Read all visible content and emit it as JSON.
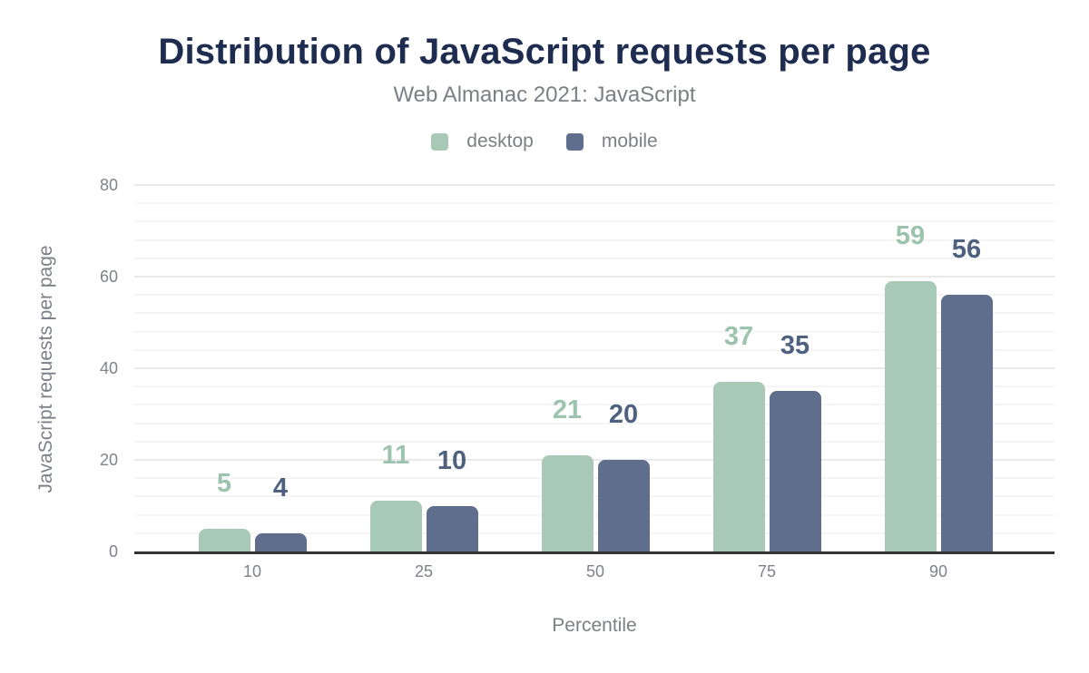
{
  "chart_data": {
    "type": "bar",
    "title": "Distribution of JavaScript requests per page",
    "subtitle": "Web Almanac 2021: JavaScript",
    "xlabel": "Percentile",
    "ylabel": "JavaScript requests per page",
    "categories": [
      "10",
      "25",
      "50",
      "75",
      "90"
    ],
    "series": [
      {
        "name": "desktop",
        "values": [
          5,
          11,
          21,
          37,
          59
        ],
        "color": "#a9c9b7",
        "label_color": "#9cc3ad"
      },
      {
        "name": "mobile",
        "values": [
          4,
          10,
          20,
          35,
          56
        ],
        "color": "#5f6e8c",
        "label_color": "#4e6280"
      }
    ],
    "ylim": [
      0,
      80
    ],
    "yticks": [
      0,
      20,
      40,
      60,
      80
    ],
    "minor_gridline_step": 4,
    "grid": "on",
    "legend_position": "top",
    "data_labels": "above bars",
    "colors": {
      "title": "#1e2d4f",
      "muted_text": "#7c7f85",
      "tick_text": "#7f828a",
      "axis_line": "#333333",
      "major_gridline": "#e9e9e9",
      "minor_gridline": "#f5f5f5",
      "background": "#ffffff"
    }
  }
}
